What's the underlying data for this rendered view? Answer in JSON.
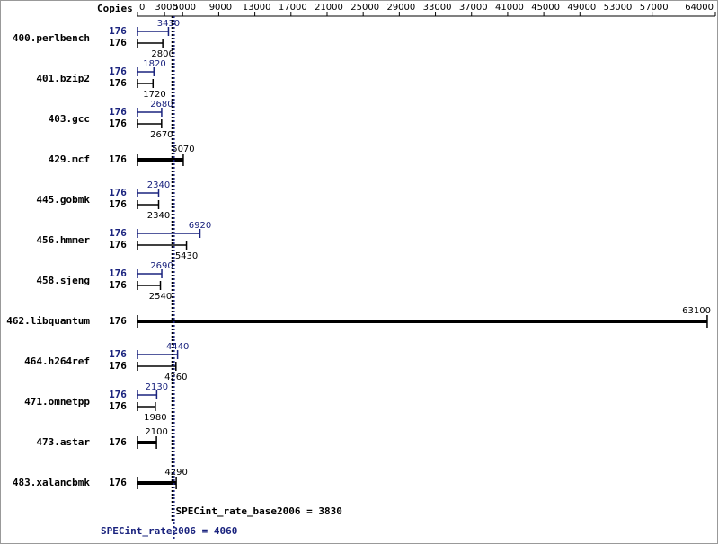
{
  "chart_data": {
    "type": "spec-whisker",
    "copies_label": "Copies",
    "categories": [
      "400.perlbench",
      "401.bzip2",
      "403.gcc",
      "429.mcf",
      "445.gobmk",
      "456.hmmer",
      "458.sjeng",
      "462.libquantum",
      "464.h264ref",
      "471.omnetpp",
      "473.astar",
      "483.xalancbmk"
    ],
    "series": [
      {
        "color": "#1a237e",
        "copies": [
          176,
          176,
          176,
          null,
          176,
          176,
          176,
          null,
          176,
          176,
          null,
          null
        ],
        "values": [
          3430,
          1820,
          2680,
          null,
          2340,
          6920,
          2690,
          null,
          4440,
          2130,
          null,
          null
        ]
      },
      {
        "color": "#000000",
        "copies": [
          176,
          176,
          176,
          176,
          176,
          176,
          176,
          176,
          176,
          176,
          176,
          176
        ],
        "values": [
          2800,
          1720,
          2670,
          5070,
          2340,
          5430,
          2540,
          63100,
          4260,
          1980,
          2100,
          4290
        ]
      }
    ],
    "summary": [
      {
        "label": "SPECint_rate_base2006 = 3830",
        "value": 3830,
        "color": "#000000"
      },
      {
        "label": "SPECint_rate2006 = 4060",
        "value": 4060,
        "color": "#1a237e"
      }
    ],
    "xlim": [
      0,
      64000
    ],
    "xticks": [
      0,
      3000,
      5000,
      9000,
      13000,
      17000,
      21000,
      25000,
      29000,
      33000,
      37000,
      41000,
      45000,
      49000,
      53000,
      57000,
      64000
    ]
  }
}
